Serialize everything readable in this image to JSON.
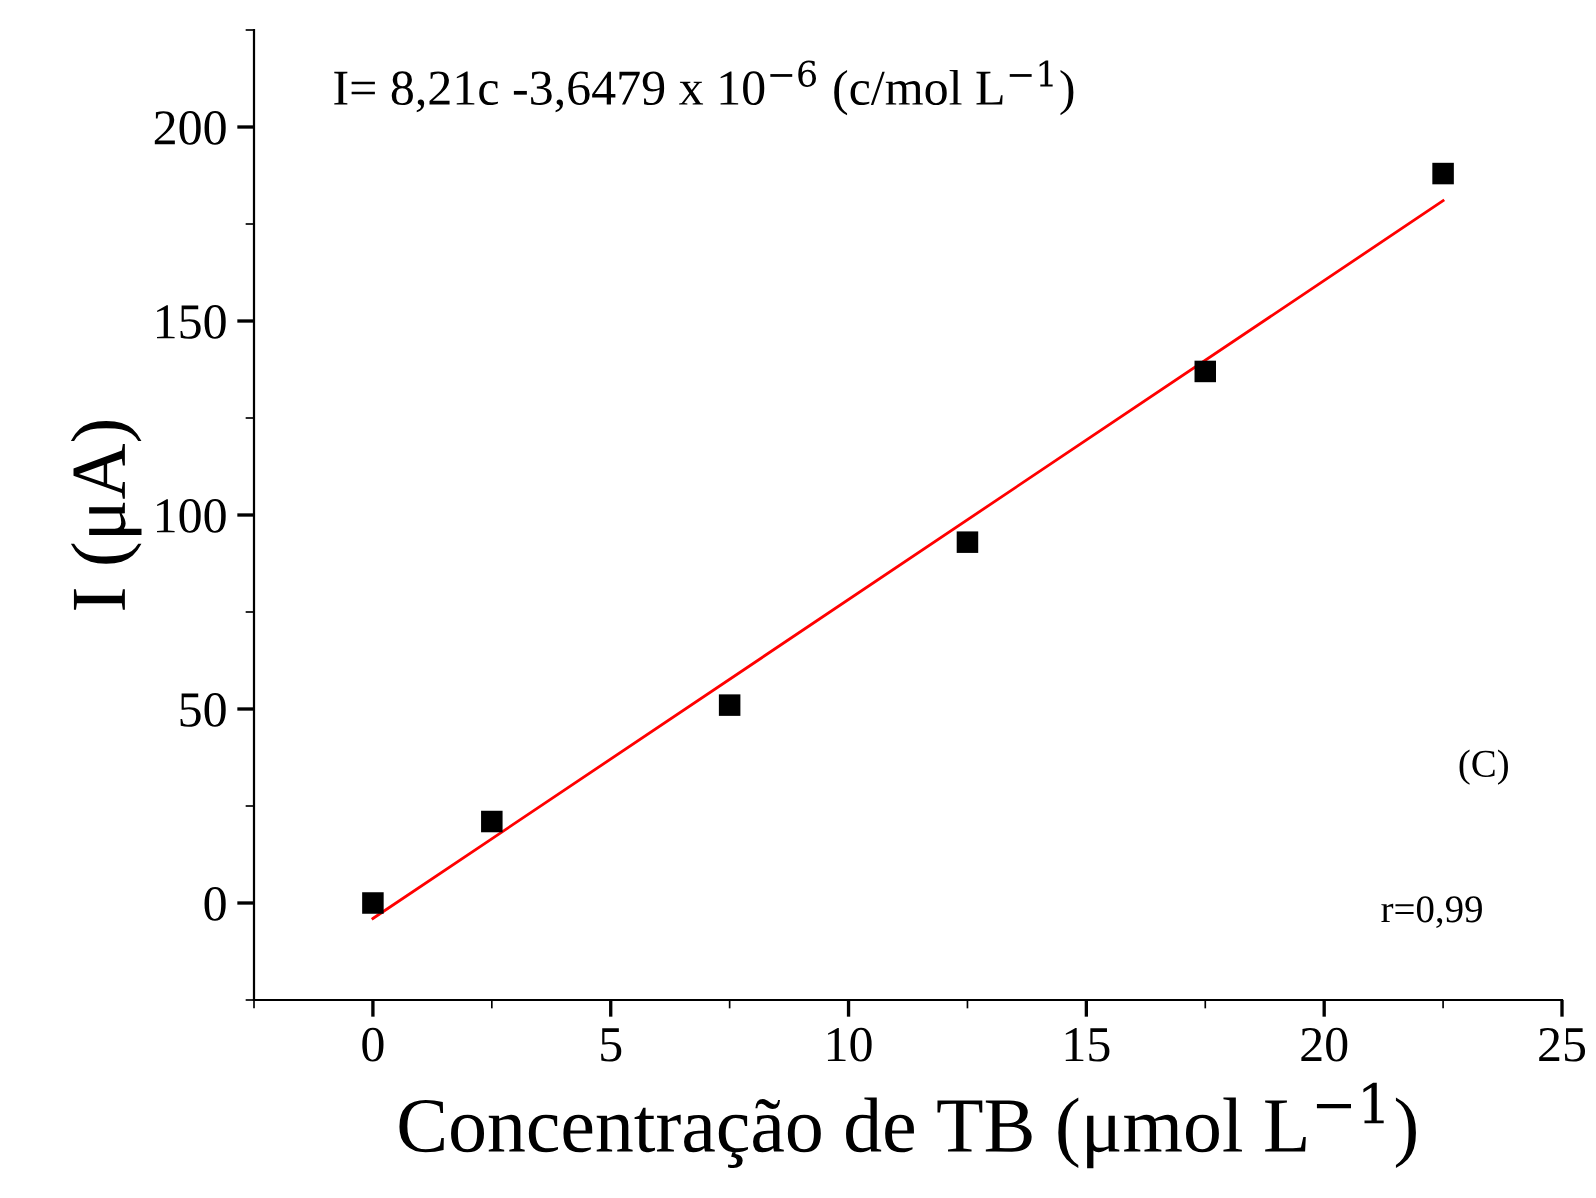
{
  "chart_data": {
    "type": "scatter",
    "xlabel": "Concentração de TB (μmol L$^{−1}$)",
    "ylabel": "I (μA)",
    "x": [
      0,
      2.5,
      7.5,
      12.5,
      17.5,
      22.5
    ],
    "series": [
      {
        "color": "#000000",
        "marker": "square",
        "values": [
          0,
          21,
          51,
          93,
          137,
          188
        ]
      },
      {
        "type": "line",
        "color": "#ff0000",
        "marker": "none",
        "line_style": "solid",
        "x": [
          0,
          22.5
        ],
        "values": [
          -4,
          181
        ]
      }
    ],
    "xlim": [
      -2.5,
      25
    ],
    "ylim": [
      -25,
      225
    ],
    "xticks": [
      0,
      5,
      10,
      15,
      20,
      25
    ],
    "yticks": [
      0,
      50,
      100,
      150,
      200
    ],
    "grid": false,
    "annotations": [
      {
        "text": "I= 8,21c -3,6479 x 10$^{−6}$ (c/mol L$^{−1}$)"
      },
      {
        "text": "(C)"
      },
      {
        "text": "r=0,99"
      }
    ]
  }
}
